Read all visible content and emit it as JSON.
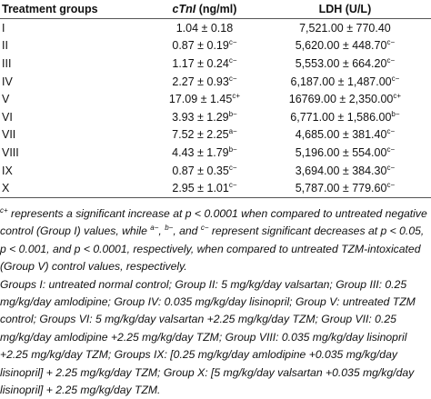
{
  "table": {
    "header": {
      "group": "Treatment groups",
      "ctni_name": "cTnI",
      "ctni_unit": "(ng/ml)",
      "ldh": "LDH (U/L)"
    },
    "rows": [
      {
        "group": "I",
        "ctni": "1.04 ± 0.18",
        "ldh": "7,521.00 ± 770.40"
      },
      {
        "group": "II",
        "ctni": "0.87 ± 0.19",
        "ctni_sup": "c−",
        "ldh": "5,620.00 ± 448.70",
        "ldh_sup": "c−"
      },
      {
        "group": "III",
        "ctni": "1.17 ± 0.24",
        "ctni_sup": "c−",
        "ldh": "5,553.00 ± 664.20",
        "ldh_sup": "c−"
      },
      {
        "group": "IV",
        "ctni": "2.27 ± 0.93",
        "ctni_sup": "c−",
        "ldh": "6,187.00 ± 1,487.00",
        "ldh_sup": "c−"
      },
      {
        "group": "V",
        "ctni": "17.09 ± 1.45",
        "ctni_sup": "c+",
        "ldh": "16769.00 ± 2,350.00",
        "ldh_sup": "c+"
      },
      {
        "group": "VI",
        "ctni": "3.93 ± 1.29",
        "ctni_sup": "b−",
        "ldh": "6,771.00 ± 1,586.00",
        "ldh_sup": "b−"
      },
      {
        "group": "VII",
        "ctni": "7.52 ± 2.25",
        "ctni_sup": "a−",
        "ldh": "4,685.00 ± 381.40",
        "ldh_sup": "c−"
      },
      {
        "group": "VIII",
        "ctni": "4.43 ± 1.79",
        "ctni_sup": "b−",
        "ldh": "5,196.00 ± 554.00",
        "ldh_sup": "c−"
      },
      {
        "group": "IX",
        "ctni": "0.87 ± 0.35",
        "ctni_sup": "c−",
        "ldh": "3,694.00 ± 384.30",
        "ldh_sup": "c−"
      },
      {
        "group": "X",
        "ctni": "2.95 ± 1.01",
        "ctni_sup": "c−",
        "ldh": "5,787.00 ± 779.60",
        "ldh_sup": "c−"
      }
    ]
  },
  "notes": [
    [
      {
        "sup": "c+"
      },
      {
        "text": " represents a significant increase at p < 0.0001 when compared to untreated negative control (Group I) values, while "
      },
      {
        "sup": "a−"
      },
      {
        "text": ", "
      },
      {
        "sup": "b−"
      },
      {
        "text": ", and "
      },
      {
        "sup": "c−"
      },
      {
        "text": " represent significant decreases at p < 0.05, p < 0.001, and p < 0.0001, respectively, when compared to untreated TZM-intoxicated (Group V) control values, respectively."
      }
    ],
    [
      {
        "text": "Groups I: untreated normal control; Group II: 5 mg/kg/day valsartan; Group III: 0.25 mg/kg/day amlodipine; Group IV: 0.035 mg/kg/day lisinopril; Group V: untreated TZM control; Groups VI: 5 mg/kg/day valsartan +2.25 mg/kg/day TZM; Group VII: 0.25 mg/kg/day amlodipine +2.25 mg/kg/day TZM; Group VIII: 0.035 mg/kg/day lisinopril +2.25 mg/kg/day TZM; Groups IX: [0.25 mg/kg/day amlodipine +0.035 mg/kg/day lisinopril] + 2.25 mg/kg/day TZM; Group X: [5 mg/kg/day valsartan +0.035 mg/kg/day lisinopril] + 2.25 mg/kg/day TZM."
      }
    ]
  ]
}
